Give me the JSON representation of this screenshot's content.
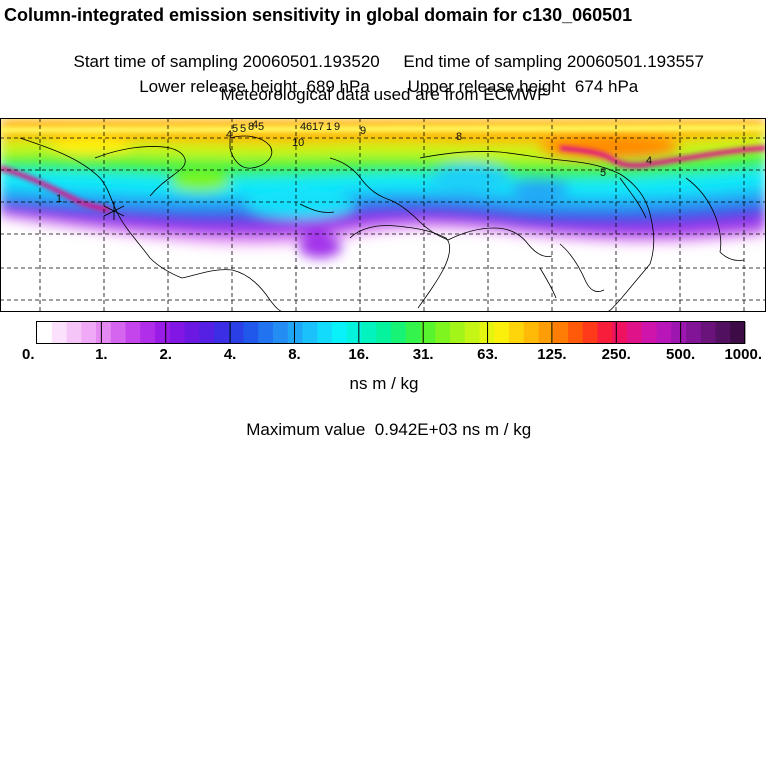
{
  "header": {
    "title": "Column-integrated emission sensitivity in global domain for c130_060501",
    "start_label": "Start time of sampling",
    "start_value": "20060501.193520",
    "end_label": "End time of sampling",
    "end_value": "20060501.193557",
    "lower_label": "Lower release height",
    "lower_value": "689 hPa",
    "upper_label": "Upper release height",
    "upper_value": "674 hPa",
    "met_line": "Meteorological data used are from ECMWF"
  },
  "map": {
    "projection": "lat-lon",
    "grid": "dashed",
    "contour_labels": [
      "1",
      "4",
      "5",
      "5",
      "8",
      "10",
      "4",
      "5",
      "4",
      "6",
      "1",
      "7",
      "1",
      "9",
      "9",
      "8",
      "5",
      "4"
    ]
  },
  "colorbar": {
    "tick_labels": [
      "0.",
      "1.",
      "2.",
      "4.",
      "8.",
      "16.",
      "31.",
      "63.",
      "125.",
      "250.",
      "500.",
      "1000."
    ],
    "colors": [
      "#ffffff",
      "#fbe1fb",
      "#f6c5f8",
      "#f0a9f6",
      "#e589f2",
      "#d564ee",
      "#c545ec",
      "#b02ee9",
      "#9a1de7",
      "#8216e5",
      "#6b18e3",
      "#5520e3",
      "#3c2ee4",
      "#2a40e6",
      "#1f58ea",
      "#2273ef",
      "#238df3",
      "#1fa6f7",
      "#1ac1fa",
      "#12dbfc",
      "#0af2f9",
      "#05f3dc",
      "#03f3bf",
      "#06f39e",
      "#16f375",
      "#33f34c",
      "#58f42d",
      "#7ef51f",
      "#a3f519",
      "#c5f514",
      "#e4f510",
      "#faf00c",
      "#fed50a",
      "#ffba08",
      "#ff9d06",
      "#ff7c05",
      "#ff5a0a",
      "#fe3a1a",
      "#f81d3a",
      "#ee1260",
      "#e0128a",
      "#cf14ab",
      "#b816b9",
      "#9d16b0",
      "#821597",
      "#69137b",
      "#521060",
      "#3d0b46"
    ],
    "units": "ns m / kg",
    "max_label": "Maximum value",
    "max_value": "0.942E+03 ns m / kg"
  }
}
